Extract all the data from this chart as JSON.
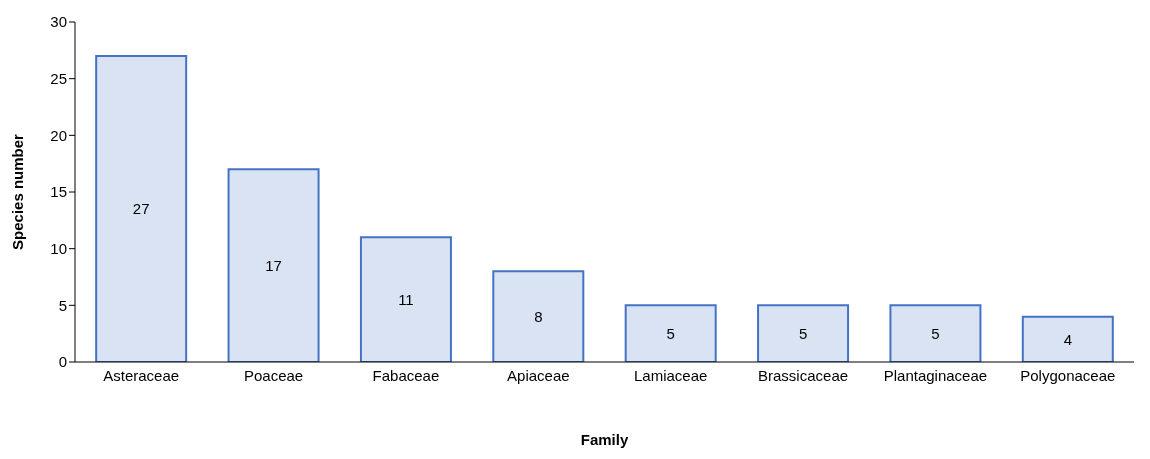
{
  "chart_data": {
    "type": "bar",
    "xlabel": "Family",
    "ylabel": "Species number",
    "categories": [
      "Asteraceae",
      "Poaceae",
      "Fabaceae",
      "Apiaceae",
      "Lamiaceae",
      "Brassicaceae",
      "Plantaginaceae",
      "Polygonaceae"
    ],
    "values": [
      27,
      17,
      11,
      8,
      5,
      5,
      5,
      4
    ],
    "color": "#dae3f3",
    "ylim": [
      0,
      30
    ],
    "yticks": [
      0,
      5,
      10,
      15,
      20,
      25,
      30
    ],
    "grid": false,
    "data_labels": true
  }
}
